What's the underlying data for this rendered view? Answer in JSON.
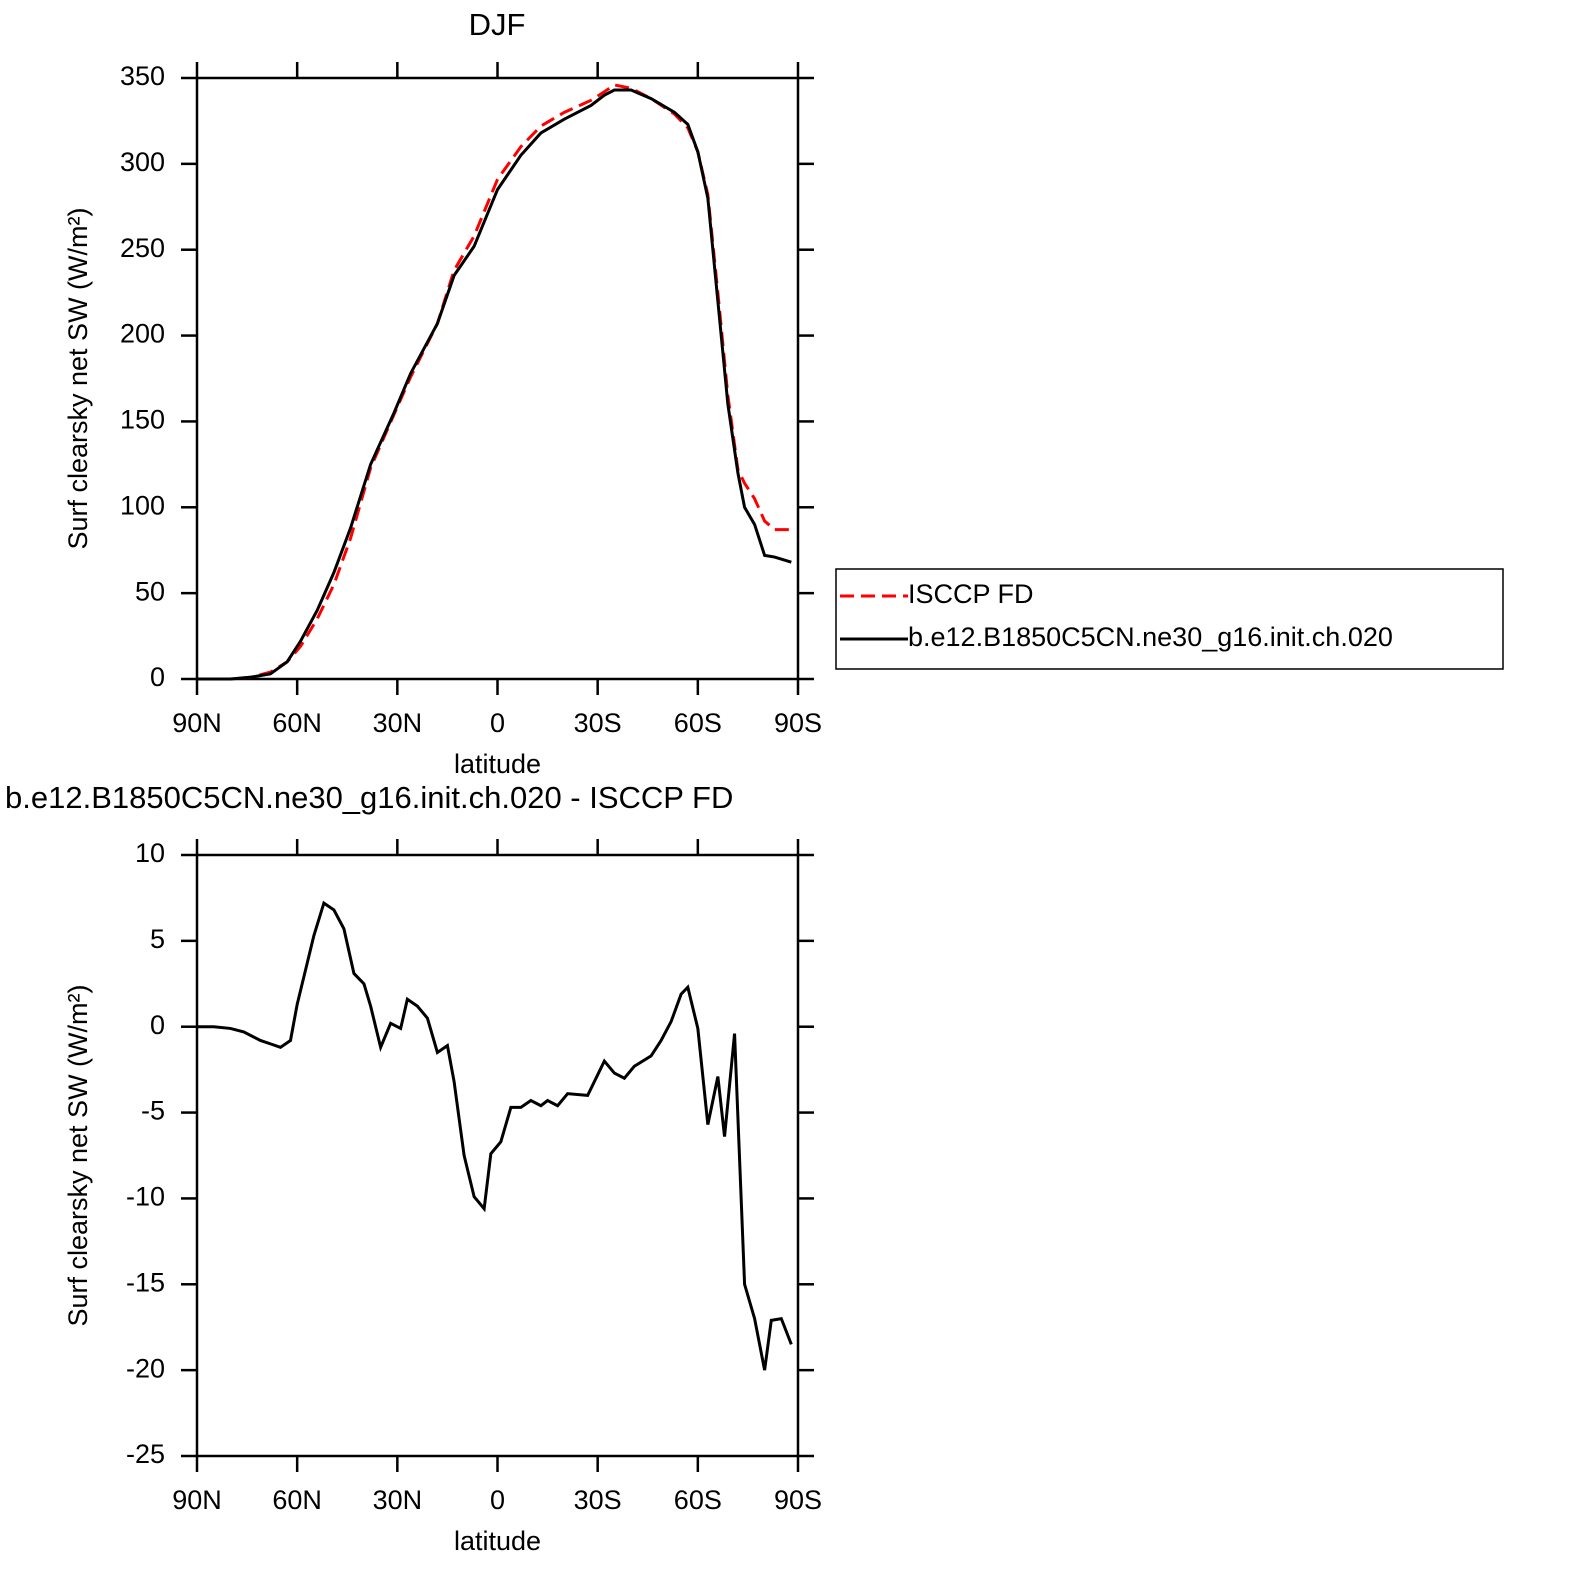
{
  "chart_data": [
    {
      "type": "line",
      "title": "DJF",
      "xlabel": "latitude",
      "ylabel": "Surf clearsky net SW (W/m²)",
      "x": [
        90,
        80,
        74,
        68,
        63,
        59,
        54,
        49,
        44,
        38,
        31,
        26,
        18,
        13,
        7,
        0,
        -7,
        -13,
        -20,
        -28,
        -32,
        -35,
        -40,
        -46,
        -53,
        -57,
        -60,
        -63,
        -66,
        -69,
        -72,
        -74,
        -77,
        -80,
        -83,
        -88
      ],
      "series": [
        {
          "name": "ISCCP FD",
          "color": "#ff0000",
          "dashed": true,
          "values": [
            0,
            0,
            1,
            4,
            10,
            19,
            35,
            55,
            82,
            123,
            154,
            176,
            207,
            238,
            258,
            291,
            310,
            322,
            330,
            337,
            342,
            346,
            344,
            338,
            329,
            321,
            307,
            282,
            225,
            165,
            122,
            114,
            105,
            92,
            87,
            87
          ]
        },
        {
          "name": "b.e12.B1850C5CN.ne30_g16.init.ch.020",
          "color": "#000000",
          "dashed": false,
          "values": [
            0,
            0,
            1,
            3,
            10,
            22,
            40,
            62,
            88,
            125,
            155,
            178,
            207,
            235,
            252,
            285,
            305,
            318,
            326,
            334,
            340,
            343,
            343,
            338,
            330,
            323,
            307,
            280,
            220,
            160,
            120,
            100,
            90,
            72,
            71,
            68
          ]
        }
      ],
      "xlim": [
        90,
        -90
      ],
      "xticks": [
        {
          "value": 90,
          "label": "90N"
        },
        {
          "value": 60,
          "label": "60N"
        },
        {
          "value": 30,
          "label": "30N"
        },
        0,
        {
          "value": -30,
          "label": "30S"
        },
        {
          "value": -60,
          "label": "60S"
        },
        {
          "value": -90,
          "label": "90S"
        }
      ],
      "ylim": [
        0,
        350
      ],
      "yticks": [
        0,
        50,
        100,
        150,
        200,
        250,
        300,
        350
      ],
      "legend": "right"
    },
    {
      "type": "line",
      "title": "b.e12.B1850C5CN.ne30_g16.init.ch.020 - ISCCP FD",
      "xlabel": "latitude",
      "ylabel": "Surf clearsky net SW (W/m²)",
      "x": [
        90,
        85,
        80,
        76,
        71,
        68,
        65,
        62,
        60,
        57,
        55,
        52,
        49,
        46,
        43,
        40,
        38,
        35,
        32,
        29,
        27,
        24,
        21,
        18,
        15,
        13,
        10,
        7,
        4,
        2,
        -1,
        -4,
        -7,
        -10,
        -13,
        -15,
        -18,
        -21,
        -27,
        -32,
        -35,
        -38,
        -41,
        -46,
        -49,
        -52,
        -55,
        -57,
        -60,
        -63,
        -66,
        -68,
        -71,
        -74,
        -77,
        -80,
        -82,
        -85,
        -88
      ],
      "values": [
        0,
        0,
        -0.1,
        -0.3,
        -0.8,
        -1.0,
        -1.2,
        -0.8,
        1.3,
        3.7,
        5.3,
        7.2,
        6.8,
        5.7,
        3.1,
        2.5,
        1.2,
        -1.2,
        0.2,
        -0.1,
        1.6,
        1.2,
        0.5,
        -1.5,
        -1.1,
        -3.2,
        -7.5,
        -9.9,
        -10.6,
        -7.4,
        -6.7,
        -4.7,
        -4.7,
        -4.3,
        -4.6,
        -4.3,
        -4.6,
        -3.9,
        -4.0,
        -2.0,
        -2.7,
        -3.0,
        -2.3,
        -1.7,
        -0.8,
        0.3,
        1.9,
        2.3,
        -0.1,
        -5.7,
        -2.9,
        -6.4,
        -0.4,
        -15.0,
        -17.0,
        -20.0,
        -17.1,
        -17.0,
        -18.5
      ],
      "color": "#000000",
      "xlim": [
        90,
        -90
      ],
      "xticks": [
        {
          "value": 90,
          "label": "90N"
        },
        {
          "value": 60,
          "label": "60N"
        },
        {
          "value": 30,
          "label": "30N"
        },
        0,
        {
          "value": -30,
          "label": "30S"
        },
        {
          "value": -60,
          "label": "60S"
        },
        {
          "value": -90,
          "label": "90S"
        }
      ],
      "ylim": [
        -25,
        10
      ],
      "yticks": [
        -25,
        -20,
        -15,
        -10,
        -5,
        0,
        5,
        10
      ]
    }
  ]
}
